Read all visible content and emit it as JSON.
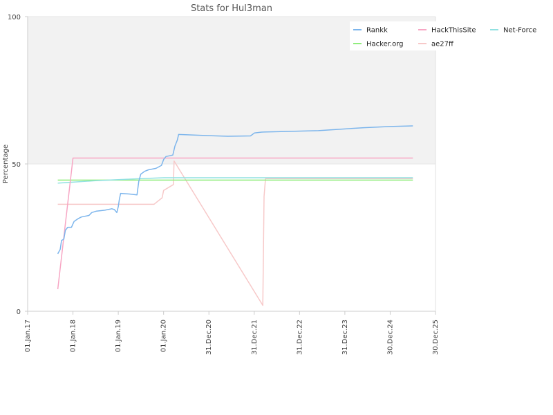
{
  "chart_data": {
    "type": "line",
    "title": "Stats for Hul3man",
    "xlabel": "",
    "ylabel": "Percentage",
    "ylim": [
      0,
      100
    ],
    "xlim": [
      "2017-01-01",
      "2025-12-30"
    ],
    "y_ticks": [
      "0",
      "50",
      "100"
    ],
    "x_ticks": [
      {
        "date": "2017-01-01",
        "label": "01.Jan.17"
      },
      {
        "date": "2018-01-01",
        "label": "01.Jan.18"
      },
      {
        "date": "2019-01-01",
        "label": "01.Jan.19"
      },
      {
        "date": "2020-01-01",
        "label": "01.Jan.20"
      },
      {
        "date": "2020-12-31",
        "label": "31.Dec.20"
      },
      {
        "date": "2021-12-31",
        "label": "31.Dec.21"
      },
      {
        "date": "2022-12-31",
        "label": "31.Dec.22"
      },
      {
        "date": "2023-12-31",
        "label": "31.Dec.23"
      },
      {
        "date": "2024-12-30",
        "label": "30.Dec.24"
      },
      {
        "date": "2025-12-30",
        "label": "30.Dec.25"
      }
    ],
    "grid": "horizontal",
    "plot_background": "#f2f2f2",
    "legend_position": "top-right",
    "series": [
      {
        "name": "Rankk",
        "color": "#7cb5ec",
        "points": [
          [
            "2017-09-01",
            19.5
          ],
          [
            "2017-09-20",
            21.0
          ],
          [
            "2017-10-01",
            24.0
          ],
          [
            "2017-10-20",
            24.5
          ],
          [
            "2017-11-01",
            27.5
          ],
          [
            "2017-11-20",
            28.5
          ],
          [
            "2017-12-20",
            28.5
          ],
          [
            "2018-01-10",
            30.5
          ],
          [
            "2018-02-15",
            31.5
          ],
          [
            "2018-03-10",
            32.0
          ],
          [
            "2018-05-10",
            32.5
          ],
          [
            "2018-06-01",
            33.5
          ],
          [
            "2018-07-10",
            34.0
          ],
          [
            "2018-09-15",
            34.3
          ],
          [
            "2018-11-10",
            34.8
          ],
          [
            "2018-12-01",
            34.5
          ],
          [
            "2018-12-20",
            33.5
          ],
          [
            "2019-01-01",
            35.5
          ],
          [
            "2019-01-10",
            38.0
          ],
          [
            "2019-01-20",
            40.0
          ],
          [
            "2019-04-01",
            39.8
          ],
          [
            "2019-06-01",
            39.5
          ],
          [
            "2019-06-15",
            44.0
          ],
          [
            "2019-07-01",
            46.5
          ],
          [
            "2019-08-01",
            47.5
          ],
          [
            "2019-09-01",
            48.0
          ],
          [
            "2019-11-01",
            48.5
          ],
          [
            "2019-12-15",
            49.5
          ],
          [
            "2020-01-01",
            51.5
          ],
          [
            "2020-01-20",
            52.5
          ],
          [
            "2020-03-15",
            53.0
          ],
          [
            "2020-04-01",
            56.0
          ],
          [
            "2020-04-20",
            58.0
          ],
          [
            "2020-05-01",
            60.0
          ],
          [
            "2020-09-01",
            59.8
          ],
          [
            "2021-01-01",
            59.6
          ],
          [
            "2021-06-01",
            59.4
          ],
          [
            "2021-12-01",
            59.5
          ],
          [
            "2022-01-01",
            60.5
          ],
          [
            "2022-03-01",
            60.8
          ],
          [
            "2022-09-01",
            61.0
          ],
          [
            "2023-06-01",
            61.3
          ],
          [
            "2023-12-01",
            61.8
          ],
          [
            "2024-06-01",
            62.3
          ],
          [
            "2025-01-01",
            62.7
          ],
          [
            "2025-07-01",
            62.9
          ]
        ]
      },
      {
        "name": "HackThisSite",
        "color": "#f7a6c4",
        "points": [
          [
            "2017-09-01",
            7.5
          ],
          [
            "2018-01-01",
            52.0
          ],
          [
            "2025-07-01",
            52.0
          ]
        ]
      },
      {
        "name": "Net-Force",
        "color": "#91e1e1",
        "points": [
          [
            "2017-09-01",
            43.5
          ],
          [
            "2018-07-01",
            44.3
          ],
          [
            "2019-07-01",
            45.0
          ],
          [
            "2020-01-01",
            45.3
          ],
          [
            "2025-07-01",
            45.3
          ]
        ]
      },
      {
        "name": "Hacker.org",
        "color": "#90ed7d",
        "points": [
          [
            "2017-09-01",
            44.5
          ],
          [
            "2025-07-01",
            44.5
          ]
        ]
      },
      {
        "name": "ae27ff",
        "color": "#f7c9c9",
        "points": [
          [
            "2017-09-01",
            36.3
          ],
          [
            "2019-10-15",
            36.3
          ],
          [
            "2019-12-20",
            38.5
          ],
          [
            "2020-01-01",
            41.0
          ],
          [
            "2020-03-20",
            43.0
          ],
          [
            "2020-03-25",
            51.0
          ],
          [
            "2022-03-10",
            2.0
          ],
          [
            "2022-03-20",
            39.0
          ],
          [
            "2022-04-01",
            45.0
          ],
          [
            "2025-07-01",
            45.0
          ]
        ]
      }
    ],
    "legend_order": [
      "Rankk",
      "HackThisSite",
      "Net-Force",
      "Hacker.org",
      "ae27ff"
    ]
  }
}
